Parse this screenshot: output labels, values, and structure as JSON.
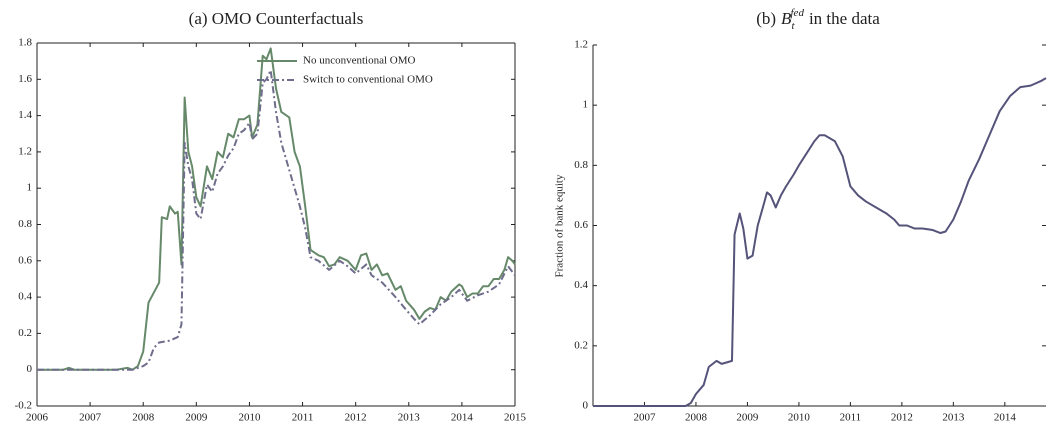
{
  "chart_data": [
    {
      "type": "line",
      "title": "(a) OMO Counterfactuals",
      "xlim": [
        2006,
        2015
      ],
      "xticks": [
        2006,
        2007,
        2008,
        2009,
        2010,
        2011,
        2012,
        2013,
        2014,
        2015
      ],
      "ylim": [
        -0.2,
        1.8
      ],
      "yticks": [
        -0.2,
        0,
        0.2,
        0.4,
        0.6,
        0.8,
        1,
        1.2,
        1.4,
        1.6,
        1.8
      ],
      "legend": "upper right",
      "box": true,
      "series": [
        {
          "name": "No unconventional OMO",
          "color": "#66896a",
          "linestyle": "solid",
          "x": [
            2006,
            2006.5,
            2006.6,
            2006.7,
            2007,
            2007.5,
            2007.7,
            2007.8,
            2007.9,
            2008.0,
            2008.1,
            2008.3,
            2008.35,
            2008.45,
            2008.5,
            2008.6,
            2008.65,
            2008.72,
            2008.78,
            2008.85,
            2008.92,
            2009.0,
            2009.08,
            2009.2,
            2009.3,
            2009.4,
            2009.5,
            2009.6,
            2009.7,
            2009.8,
            2009.9,
            2010.0,
            2010.05,
            2010.15,
            2010.25,
            2010.32,
            2010.4,
            2010.5,
            2010.6,
            2010.75,
            2010.85,
            2010.95,
            2011.05,
            2011.15,
            2011.3,
            2011.4,
            2011.5,
            2011.6,
            2011.7,
            2011.85,
            2012.0,
            2012.1,
            2012.2,
            2012.3,
            2012.4,
            2012.5,
            2012.6,
            2012.75,
            2012.85,
            2012.95,
            2013.1,
            2013.2,
            2013.3,
            2013.4,
            2013.5,
            2013.6,
            2013.7,
            2013.8,
            2013.95,
            2014.0,
            2014.1,
            2014.2,
            2014.3,
            2014.4,
            2014.5,
            2014.6,
            2014.7,
            2014.8,
            2014.87,
            2014.95,
            2015
          ],
          "values": [
            0,
            0,
            0.01,
            0,
            0,
            0,
            0.01,
            0,
            0.02,
            0.1,
            0.37,
            0.48,
            0.84,
            0.83,
            0.9,
            0.86,
            0.87,
            0.58,
            1.5,
            1.2,
            1.12,
            0.95,
            0.9,
            1.12,
            1.05,
            1.2,
            1.17,
            1.3,
            1.28,
            1.38,
            1.38,
            1.4,
            1.28,
            1.35,
            1.73,
            1.71,
            1.77,
            1.55,
            1.42,
            1.39,
            1.2,
            1.12,
            0.9,
            0.66,
            0.63,
            0.62,
            0.57,
            0.58,
            0.62,
            0.6,
            0.55,
            0.63,
            0.64,
            0.55,
            0.58,
            0.52,
            0.53,
            0.44,
            0.46,
            0.38,
            0.33,
            0.28,
            0.32,
            0.34,
            0.33,
            0.4,
            0.38,
            0.43,
            0.47,
            0.46,
            0.4,
            0.42,
            0.42,
            0.46,
            0.46,
            0.5,
            0.5,
            0.55,
            0.62,
            0.6,
            0.58
          ]
        },
        {
          "name": "Switch to conventional OMO",
          "color": "#6e6d8c",
          "linestyle": "dashed",
          "x": [
            2006,
            2007.8,
            2008.0,
            2008.1,
            2008.2,
            2008.3,
            2008.5,
            2008.65,
            2008.72,
            2008.78,
            2008.85,
            2008.92,
            2009.0,
            2009.08,
            2009.2,
            2009.3,
            2009.4,
            2009.5,
            2009.6,
            2009.7,
            2009.8,
            2009.9,
            2010.0,
            2010.05,
            2010.15,
            2010.25,
            2010.32,
            2010.4,
            2010.5,
            2010.6,
            2010.75,
            2010.85,
            2010.95,
            2011.05,
            2011.15,
            2011.3,
            2011.5,
            2011.7,
            2011.85,
            2012.0,
            2012.2,
            2012.3,
            2012.5,
            2012.75,
            2012.95,
            2013.1,
            2013.2,
            2013.4,
            2013.6,
            2013.8,
            2013.95,
            2014.1,
            2014.3,
            2014.5,
            2014.7,
            2014.87,
            2015
          ],
          "values": [
            0,
            0,
            0.02,
            0.04,
            0.12,
            0.15,
            0.16,
            0.18,
            0.25,
            1.25,
            1.12,
            1.05,
            0.86,
            0.83,
            1.02,
            0.98,
            1.08,
            1.12,
            1.18,
            1.22,
            1.3,
            1.32,
            1.36,
            1.27,
            1.3,
            1.58,
            1.6,
            1.65,
            1.42,
            1.25,
            1.1,
            1.0,
            0.9,
            0.78,
            0.62,
            0.6,
            0.55,
            0.6,
            0.57,
            0.53,
            0.58,
            0.52,
            0.48,
            0.4,
            0.33,
            0.28,
            0.25,
            0.3,
            0.36,
            0.4,
            0.44,
            0.38,
            0.41,
            0.43,
            0.47,
            0.57,
            0.52
          ]
        }
      ]
    },
    {
      "type": "line",
      "title": {
        "prefix": "(b)",
        "symbol": "B",
        "subscript": "t",
        "superscript": "fed",
        "suffix": "in the data"
      },
      "ylabel": "Fraction of bank equity",
      "xlim": [
        2006,
        2014.8
      ],
      "xticks": [
        2007,
        2008,
        2009,
        2010,
        2011,
        2012,
        2013,
        2014
      ],
      "ylim": [
        0,
        1.2
      ],
      "yticks": [
        0,
        0.2,
        0.4,
        0.6,
        0.8,
        1,
        1.2
      ],
      "box": false,
      "series": [
        {
          "color": "#55537a",
          "linestyle": "solid",
          "x": [
            2006,
            2007,
            2007.8,
            2007.9,
            2008.0,
            2008.15,
            2008.25,
            2008.4,
            2008.5,
            2008.7,
            2008.75,
            2008.85,
            2008.92,
            2009.0,
            2009.1,
            2009.2,
            2009.3,
            2009.38,
            2009.45,
            2009.55,
            2009.65,
            2009.75,
            2009.9,
            2010.0,
            2010.15,
            2010.3,
            2010.4,
            2010.5,
            2010.6,
            2010.7,
            2010.85,
            2011.0,
            2011.15,
            2011.3,
            2011.5,
            2011.7,
            2011.85,
            2011.95,
            2012.1,
            2012.25,
            2012.4,
            2012.6,
            2012.75,
            2012.85,
            2013.0,
            2013.15,
            2013.3,
            2013.5,
            2013.7,
            2013.9,
            2014.1,
            2014.3,
            2014.5,
            2014.7,
            2014.8
          ],
          "values": [
            0,
            0,
            0,
            0.01,
            0.04,
            0.07,
            0.13,
            0.15,
            0.14,
            0.15,
            0.57,
            0.64,
            0.59,
            0.49,
            0.5,
            0.6,
            0.66,
            0.71,
            0.7,
            0.66,
            0.7,
            0.73,
            0.77,
            0.8,
            0.84,
            0.88,
            0.9,
            0.9,
            0.89,
            0.88,
            0.83,
            0.73,
            0.7,
            0.68,
            0.66,
            0.64,
            0.62,
            0.6,
            0.6,
            0.59,
            0.59,
            0.585,
            0.575,
            0.58,
            0.62,
            0.68,
            0.75,
            0.82,
            0.9,
            0.98,
            1.03,
            1.06,
            1.065,
            1.08,
            1.09
          ]
        }
      ]
    }
  ]
}
